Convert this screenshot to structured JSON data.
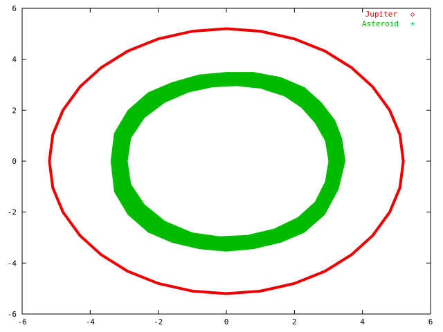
{
  "chart_data": {
    "type": "scatter",
    "title": "",
    "xlabel": "",
    "ylabel": "",
    "xlim": [
      -6,
      6
    ],
    "ylim": [
      -6,
      6
    ],
    "xticks": [
      -6,
      -4,
      -2,
      0,
      2,
      4,
      6
    ],
    "yticks": [
      -6,
      -4,
      -2,
      0,
      2,
      4,
      6
    ],
    "xtick_labels": [
      "-6",
      "-4",
      "-2",
      "0",
      "2",
      "4",
      "6"
    ],
    "ytick_labels": [
      "-6",
      "-4",
      "-2",
      "0",
      "2",
      "4",
      "6"
    ],
    "grid": false,
    "legend_position": "top-right",
    "series": [
      {
        "name": "Jupiter",
        "marker": "◇",
        "color": "#ee0000",
        "points": [
          [
            5.2,
            0.0
          ],
          [
            5.1,
            1.04
          ],
          [
            4.8,
            2.0
          ],
          [
            4.3,
            2.92
          ],
          [
            3.68,
            3.67
          ],
          [
            2.9,
            4.32
          ],
          [
            2.0,
            4.8
          ],
          [
            1.0,
            5.1
          ],
          [
            0.0,
            5.2
          ],
          [
            -1.0,
            5.1
          ],
          [
            -2.0,
            4.8
          ],
          [
            -2.9,
            4.32
          ],
          [
            -3.68,
            3.67
          ],
          [
            -4.3,
            2.92
          ],
          [
            -4.8,
            2.0
          ],
          [
            -5.1,
            1.04
          ],
          [
            -5.2,
            0.0
          ],
          [
            -5.1,
            -1.04
          ],
          [
            -4.8,
            -2.0
          ],
          [
            -4.3,
            -2.92
          ],
          [
            -3.68,
            -3.67
          ],
          [
            -2.9,
            -4.32
          ],
          [
            -2.0,
            -4.8
          ],
          [
            -1.0,
            -5.1
          ],
          [
            0.0,
            -5.2
          ],
          [
            1.0,
            -5.1
          ],
          [
            2.0,
            -4.8
          ],
          [
            2.9,
            -4.32
          ],
          [
            3.68,
            -3.67
          ],
          [
            4.3,
            -2.92
          ],
          [
            4.8,
            -2.0
          ],
          [
            5.1,
            -1.04
          ]
        ]
      },
      {
        "name": "Asteroid",
        "marker": "+",
        "color": "#00bb00",
        "outer_boundary": [
          [
            3.5,
            0.0
          ],
          [
            3.4,
            0.9
          ],
          [
            3.2,
            1.6
          ],
          [
            2.8,
            2.3
          ],
          [
            2.3,
            2.9
          ],
          [
            1.6,
            3.3
          ],
          [
            0.8,
            3.5
          ],
          [
            0.0,
            3.5
          ],
          [
            -0.8,
            3.4
          ],
          [
            -1.6,
            3.1
          ],
          [
            -2.3,
            2.7
          ],
          [
            -2.9,
            2.0
          ],
          [
            -3.3,
            1.1
          ],
          [
            -3.4,
            0.0
          ],
          [
            -3.3,
            -1.2
          ],
          [
            -2.9,
            -2.1
          ],
          [
            -2.3,
            -2.8
          ],
          [
            -1.6,
            -3.2
          ],
          [
            -0.8,
            -3.45
          ],
          [
            0.0,
            -3.55
          ],
          [
            0.8,
            -3.45
          ],
          [
            1.6,
            -3.2
          ],
          [
            2.3,
            -2.8
          ],
          [
            2.9,
            -2.1
          ],
          [
            3.3,
            -1.1
          ]
        ],
        "inner_boundary": [
          [
            3.0,
            0.0
          ],
          [
            2.9,
            0.8
          ],
          [
            2.6,
            1.5
          ],
          [
            2.2,
            2.1
          ],
          [
            1.7,
            2.55
          ],
          [
            1.0,
            2.85
          ],
          [
            0.3,
            2.95
          ],
          [
            -0.4,
            2.9
          ],
          [
            -1.1,
            2.7
          ],
          [
            -1.8,
            2.3
          ],
          [
            -2.4,
            1.7
          ],
          [
            -2.8,
            0.9
          ],
          [
            -2.9,
            0.0
          ],
          [
            -2.8,
            -0.9
          ],
          [
            -2.4,
            -1.7
          ],
          [
            -1.8,
            -2.35
          ],
          [
            -1.0,
            -2.8
          ],
          [
            -0.2,
            -2.95
          ],
          [
            0.6,
            -2.9
          ],
          [
            1.4,
            -2.65
          ],
          [
            2.1,
            -2.2
          ],
          [
            2.6,
            -1.6
          ],
          [
            2.9,
            -0.8
          ]
        ]
      }
    ]
  }
}
